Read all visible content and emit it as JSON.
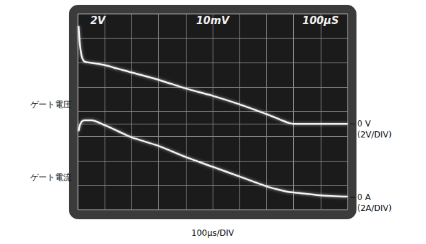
{
  "chart_data": {
    "type": "line",
    "xlabel": "100µs/DIV",
    "screen_labels": [
      "2V",
      "10mV",
      "100µS"
    ],
    "x": [
      3,
      8,
      15,
      25,
      50,
      100,
      150,
      200,
      300,
      400,
      500,
      600,
      700,
      750,
      780,
      800,
      900,
      1000
    ],
    "xlim": [
      0,
      1000
    ],
    "xticks": [
      0,
      100,
      200,
      300,
      400,
      500,
      600,
      700,
      800,
      900,
      1000
    ],
    "ylim": [
      -7,
      9
    ],
    "yticks": [
      -7,
      -5,
      -3,
      -1,
      1,
      3,
      5,
      7,
      9
    ],
    "y2lim": [
      -1,
      15
    ],
    "y2ticks": [
      -1,
      1,
      3,
      5,
      7,
      9,
      11,
      13,
      15
    ],
    "grid": true,
    "tick_labels": false,
    "series": [
      {
        "name": "ゲート電圧",
        "color": "#f4f4f4",
        "values": [
          8.0,
          6.5,
          5.5,
          5.1,
          5.0,
          4.8,
          4.5,
          4.2,
          3.6,
          2.9,
          2.3,
          1.6,
          0.8,
          0.35,
          0.1,
          0,
          0,
          0
        ]
      },
      {
        "name": "ゲート電流",
        "color": "#f4f4f4",
        "axis": "y2",
        "values": [
          5.4,
          5.9,
          6.2,
          6.3,
          6.3,
          5.9,
          5.4,
          4.9,
          4.2,
          3.3,
          2.5,
          1.7,
          0.9,
          0.6,
          0.45,
          0.4,
          0.17,
          0.06
        ]
      }
    ],
    "annotations": [
      {
        "text": [
          "0 V",
          "(2V/DIV)"
        ],
        "axis": "y",
        "y": 0
      },
      {
        "text": [
          "0 A",
          "(2A/DIV)"
        ],
        "axis": "y2",
        "y": 0
      }
    ]
  }
}
